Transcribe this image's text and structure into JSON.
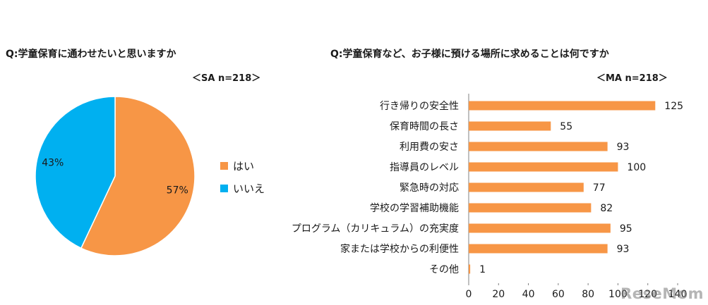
{
  "left_panel": {
    "question": "Q:学童保育に通わせたいと思いますか",
    "sample": "＜SA n=218＞"
  },
  "right_panel": {
    "question": "Q:学童保育など、お子様に預ける場所に求めることは何ですか",
    "sample": "＜MA n=218＞"
  },
  "watermark": "ReseMom",
  "chart_data": [
    {
      "type": "pie",
      "title": "",
      "slices": [
        {
          "name": "はい",
          "value": 57,
          "label": "57%",
          "color": "#F79646"
        },
        {
          "name": "いいえ",
          "value": 43,
          "label": "43%",
          "color": "#00B0F0"
        }
      ],
      "legend": "right"
    },
    {
      "type": "bar",
      "orientation": "horizontal",
      "title": "",
      "categories": [
        "行き帰りの安全性",
        "保育時間の長さ",
        "利用費の安さ",
        "指導員のレベル",
        "緊急時の対応",
        "学校の学習補助機能",
        "プログラム（カリキュラム）の充実度",
        "家または学校からの利便性",
        "その他"
      ],
      "values": [
        125,
        55,
        93,
        100,
        77,
        82,
        95,
        93,
        1
      ],
      "xlim": [
        0,
        140
      ],
      "ticks": [
        0,
        20,
        40,
        60,
        80,
        100,
        120,
        140
      ],
      "color": "#F79646",
      "grid": false
    }
  ]
}
